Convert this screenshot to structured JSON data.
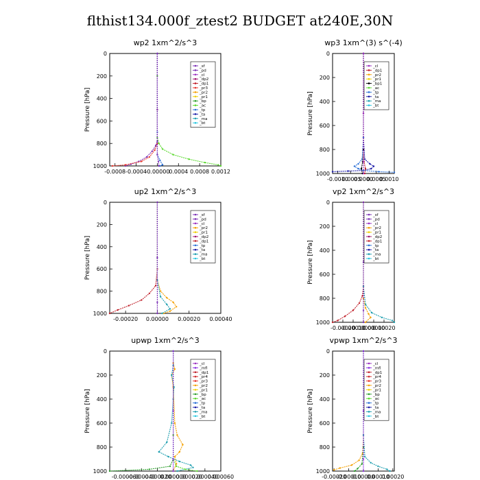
{
  "title": "flthist134.000f_ztest2  BUDGET at240E,30N",
  "colors": {
    "_sf": "#7a2fb5",
    "_pd": "#7a2fb5",
    "_cl": "#9b30c0",
    "_mfl": "#8a2be2",
    "_dp2": "#a0146e",
    "_dp1": "#c0202a",
    "_pr3": "#e8352a",
    "_pr4": "#d22e2e",
    "_pr2": "#f5a000",
    "_pr1": "#f0d000",
    "_bp": "#2e9e2e",
    "_ac": "#59d82d",
    "_tp": "#2a6fd6",
    "_ta": "#1a1aa8",
    "_ma": "#1f9fb0",
    "_bt": "#29c7e0"
  },
  "chart_data": [
    {
      "type": "line",
      "title": "wp2  1xm^2/s^3",
      "ylabel": "Pressure [hPa]",
      "xlim": [
        -0.0009,
        0.0012
      ],
      "ylim": [
        1000,
        0
      ],
      "xticks": [
        -0.0008,
        -0.0004,
        0.0,
        0.0004,
        0.0008,
        0.0012
      ],
      "xtick_labels": [
        "-0.0008",
        "-0.0004",
        "-0.00000",
        "0.0004",
        "0.0008",
        "0.0012"
      ],
      "yticks": [
        0,
        200,
        400,
        600,
        800,
        1000
      ],
      "legend": [
        "_sf",
        "_pd",
        "_cl",
        "_dp2",
        "_dp1",
        "_pr3",
        "_pr2",
        "_pr1",
        "_bp",
        "_ac",
        "_tp",
        "_ta",
        "_ma",
        "_bt"
      ],
      "series": [
        {
          "name": "_ac",
          "values": [
            [
              0,
              0
            ],
            [
              0,
              200
            ],
            [
              0,
              500
            ],
            [
              0,
              750
            ],
            [
              3e-05,
              800
            ],
            [
              0.0001,
              850
            ],
            [
              0.0003,
              900
            ],
            [
              0.0006,
              940
            ],
            [
              0.0009,
              970
            ],
            [
              0.00115,
              990
            ],
            [
              0.0012,
              1000
            ]
          ]
        },
        {
          "name": "_pd",
          "values": [
            [
              0,
              0
            ],
            [
              0,
              500
            ],
            [
              0,
              780
            ],
            [
              -3e-05,
              820
            ],
            [
              -0.0001,
              870
            ],
            [
              -0.0002,
              920
            ],
            [
              -0.00035,
              960
            ],
            [
              -0.0005,
              985
            ],
            [
              -0.0006,
              1000
            ]
          ]
        },
        {
          "name": "_pr3",
          "values": [
            [
              0,
              0
            ],
            [
              0,
              500
            ],
            [
              0,
              800
            ],
            [
              -5e-05,
              860
            ],
            [
              -0.00015,
              920
            ],
            [
              -0.0003,
              960
            ],
            [
              -0.0006,
              990
            ],
            [
              -0.00085,
              1000
            ]
          ]
        },
        {
          "name": "_tp",
          "values": [
            [
              0,
              0
            ],
            [
              0,
              700
            ],
            [
              0,
              900
            ],
            [
              5e-05,
              950
            ],
            [
              0.0001,
              990
            ],
            [
              5e-05,
              1000
            ]
          ]
        },
        {
          "name": "_sf",
          "values": [
            [
              0,
              0
            ],
            [
              0,
              500
            ],
            [
              0,
              900
            ],
            [
              2e-05,
              960
            ],
            [
              3e-05,
              1000
            ]
          ]
        }
      ]
    },
    {
      "type": "line",
      "title": "wp3  1xm^(3) s^(-4)",
      "ylabel": "Pressure [hPa]",
      "xlim": [
        -0.0012,
        0.0012
      ],
      "ylim": [
        1000,
        0
      ],
      "xticks": [
        -0.001,
        -0.0005,
        0.0,
        0.0005,
        0.001
      ],
      "xtick_labels": [
        "-0.0010",
        "-0.0005",
        "0.0000",
        "0.0005",
        "0.0010"
      ],
      "yticks": [
        0,
        200,
        400,
        600,
        800,
        1000
      ],
      "legend": [
        "_cl",
        "_dp1",
        "_pr2",
        "_pr1",
        "_bp1",
        "_ac",
        "_tp",
        "_ta",
        "_ma",
        "_bt"
      ],
      "series": [
        {
          "name": "_ta",
          "values": [
            [
              0,
              0
            ],
            [
              0,
              700
            ],
            [
              5e-05,
              880
            ],
            [
              0.00025,
              920
            ],
            [
              0.0004,
              940
            ],
            [
              0.0003,
              960
            ],
            [
              0,
              975
            ],
            [
              -0.0006,
              980
            ],
            [
              -0.0012,
              985
            ]
          ]
        },
        {
          "name": "_tp",
          "values": [
            [
              0,
              0
            ],
            [
              0,
              700
            ],
            [
              -5e-05,
              880
            ],
            [
              -0.0002,
              920
            ],
            [
              -0.00035,
              940
            ],
            [
              -0.0002,
              960
            ],
            [
              0,
              975
            ],
            [
              0.0006,
              985
            ],
            [
              0.0012,
              990
            ]
          ]
        },
        {
          "name": "_dp1",
          "values": [
            [
              0,
              0
            ],
            [
              0,
              500
            ],
            [
              0,
              800
            ],
            [
              2e-05,
              900
            ],
            [
              8e-05,
              960
            ],
            [
              5e-05,
              1000
            ]
          ]
        },
        {
          "name": "_bp1",
          "values": [
            [
              0,
              0
            ],
            [
              0,
              800
            ],
            [
              -3e-05,
              900
            ],
            [
              -8e-05,
              960
            ],
            [
              -4e-05,
              1000
            ]
          ]
        },
        {
          "name": "_cl",
          "values": [
            [
              0,
              0
            ],
            [
              0,
              500
            ],
            [
              0,
              900
            ],
            [
              0,
              1000
            ]
          ]
        }
      ]
    },
    {
      "type": "line",
      "title": "up2  1xm^2/s^3",
      "ylabel": "Pressure [hPa]",
      "xlim": [
        -0.0003,
        0.0004
      ],
      "ylim": [
        1000,
        0
      ],
      "xticks": [
        -0.0002,
        0.0,
        0.0002,
        0.0004
      ],
      "xtick_labels": [
        "-0.00020",
        "0.00000",
        "0.00020",
        "0.00040"
      ],
      "yticks": [
        0,
        200,
        400,
        600,
        800,
        1000
      ],
      "legend": [
        "_sf",
        "_pd",
        "_cl",
        "_pr2",
        "_pr1",
        "_dp2",
        "_dp1",
        "_tp",
        "_ta",
        "_ma",
        "_bt"
      ],
      "series": [
        {
          "name": "_dp1",
          "values": [
            [
              0,
              0
            ],
            [
              0,
              600
            ],
            [
              -1e-05,
              750
            ],
            [
              -5e-05,
              820
            ],
            [
              -0.0001,
              880
            ],
            [
              -0.00018,
              930
            ],
            [
              -0.00025,
              970
            ],
            [
              -0.0003,
              1000
            ]
          ]
        },
        {
          "name": "_pr2",
          "values": [
            [
              0,
              0
            ],
            [
              0,
              700
            ],
            [
              2e-05,
              800
            ],
            [
              6e-05,
              860
            ],
            [
              0.0001,
              900
            ],
            [
              0.00012,
              940
            ],
            [
              8e-05,
              980
            ],
            [
              4e-05,
              1000
            ]
          ]
        },
        {
          "name": "_ma",
          "values": [
            [
              0,
              0
            ],
            [
              0,
              700
            ],
            [
              2e-05,
              850
            ],
            [
              6e-05,
              920
            ],
            [
              8e-05,
              960
            ],
            [
              3e-05,
              1000
            ]
          ]
        },
        {
          "name": "_pd",
          "values": [
            [
              0,
              0
            ],
            [
              0,
              500
            ],
            [
              0,
              900
            ],
            [
              0,
              1000
            ]
          ]
        }
      ]
    },
    {
      "type": "line",
      "title": "vp2  1xm^2/s^3",
      "ylabel": "Pressure [hPa]",
      "xlim": [
        -0.0003,
        0.0003
      ],
      "ylim": [
        1000,
        0
      ],
      "xticks": [
        -0.0002,
        -0.0001,
        0.0,
        0.0001,
        0.0002
      ],
      "xtick_labels": [
        "-0.00020",
        "-0.00010",
        "0.00000",
        "0.00010",
        "0.00020"
      ],
      "yticks": [
        0,
        200,
        400,
        600,
        800,
        1000
      ],
      "legend": [
        "_sf",
        "_pd",
        "_cl",
        "_pr2",
        "_pr1",
        "_dp2",
        "_dp1",
        "_tp",
        "_ta",
        "_ma",
        "_bt"
      ],
      "series": [
        {
          "name": "_dp1",
          "values": [
            [
              0,
              0
            ],
            [
              0,
              700
            ],
            [
              -1e-05,
              780
            ],
            [
              -4e-05,
              840
            ],
            [
              -0.0001,
              900
            ],
            [
              -0.00018,
              950
            ],
            [
              -0.00025,
              985
            ],
            [
              -0.0003,
              1000
            ]
          ]
        },
        {
          "name": "_ma",
          "values": [
            [
              0,
              0
            ],
            [
              0,
              700
            ],
            [
              2e-05,
              850
            ],
            [
              8e-05,
              920
            ],
            [
              0.00018,
              960
            ],
            [
              0.00028,
              985
            ],
            [
              0.0003,
              1000
            ]
          ]
        },
        {
          "name": "_pr2",
          "values": [
            [
              0,
              0
            ],
            [
              0,
              800
            ],
            [
              2e-05,
              880
            ],
            [
              5e-05,
              930
            ],
            [
              7e-05,
              960
            ],
            [
              2e-05,
              1000
            ]
          ]
        },
        {
          "name": "_pd",
          "values": [
            [
              0,
              0
            ],
            [
              0,
              500
            ],
            [
              0,
              900
            ],
            [
              0,
              1000
            ]
          ]
        }
      ]
    },
    {
      "type": "line",
      "title": "upwp  1xm^2/s^3",
      "ylabel": "Pressure [hPa]",
      "xlim": [
        -8e-05,
        6e-05
      ],
      "ylim": [
        1000,
        0
      ],
      "xticks": [
        -6e-05,
        -4e-05,
        -2e-05,
        0.0,
        2e-05,
        4e-05,
        6e-05
      ],
      "xtick_labels": [
        "-0.000060",
        "-0.000040",
        "-0.000020",
        "0.000000",
        "0.000020",
        "0.000040",
        "0.000060"
      ],
      "yticks": [
        0,
        200,
        400,
        600,
        800,
        1000
      ],
      "legend": [
        "_cl",
        "_mfl",
        "_dp1",
        "_pr4",
        "_pr3",
        "_pr2",
        "_pr1",
        "_bp",
        "_ac",
        "_tp",
        "_ta",
        "_ma",
        "_bt"
      ],
      "series": [
        {
          "name": "_pr2",
          "values": [
            [
              0,
              0
            ],
            [
              0,
              100
            ],
            [
              2e-06,
              150
            ],
            [
              -2e-06,
              200
            ],
            [
              0,
              300
            ],
            [
              2e-06,
              600
            ],
            [
              5e-06,
              700
            ],
            [
              1.2e-05,
              780
            ],
            [
              8e-06,
              840
            ],
            [
              2e-06,
              880
            ],
            [
              4e-06,
              940
            ],
            [
              0,
              1000
            ]
          ]
        },
        {
          "name": "_ma",
          "values": [
            [
              0,
              0
            ],
            [
              0,
              120
            ],
            [
              -2e-06,
              200
            ],
            [
              1e-06,
              300
            ],
            [
              0,
              400
            ],
            [
              -2e-06,
              600
            ],
            [
              -8e-06,
              760
            ],
            [
              -1.8e-05,
              840
            ],
            [
              -6e-06,
              880
            ],
            [
              8e-06,
              920
            ],
            [
              2.2e-05,
              950
            ],
            [
              2.5e-05,
              970
            ],
            [
              5e-06,
              1000
            ]
          ]
        },
        {
          "name": "_bp",
          "values": [
            [
              0,
              0
            ],
            [
              0,
              700
            ],
            [
              0,
              900
            ],
            [
              -4e-06,
              960
            ],
            [
              -3e-05,
              985
            ],
            [
              -8e-05,
              1000
            ]
          ]
        },
        {
          "name": "_ac",
          "values": [
            [
              0,
              0
            ],
            [
              0,
              700
            ],
            [
              0,
              900
            ],
            [
              4e-06,
              960
            ],
            [
              1.5e-05,
              985
            ],
            [
              3e-05,
              1000
            ]
          ]
        },
        {
          "name": "_mfl",
          "values": [
            [
              0,
              0
            ],
            [
              0,
              500
            ],
            [
              0,
              900
            ],
            [
              0,
              1000
            ]
          ]
        }
      ]
    },
    {
      "type": "line",
      "title": "vpwp  1xm^2/s^3",
      "ylabel": "Pressure [hPa]",
      "xlim": [
        -0.00021,
        0.00021
      ],
      "ylim": [
        1000,
        0
      ],
      "xticks": [
        -0.0002,
        -0.0001,
        0.0,
        0.0001,
        0.0002
      ],
      "xtick_labels": [
        "-0.00020",
        "-0.00010",
        "0.00000",
        "0.00010",
        "0.00020"
      ],
      "yticks": [
        0,
        200,
        400,
        600,
        800,
        1000
      ],
      "legend": [
        "_cl",
        "_mfl",
        "_dp1",
        "_pr4",
        "_pr3",
        "_pr2",
        "_pr1",
        "_bp",
        "_ac",
        "_tp",
        "_ta",
        "_ma",
        "_bt"
      ],
      "series": [
        {
          "name": "_pr2",
          "values": [
            [
              0,
              0
            ],
            [
              0,
              700
            ],
            [
              -5e-06,
              850
            ],
            [
              -3e-05,
              910
            ],
            [
              -8e-05,
              950
            ],
            [
              -0.00016,
              975
            ],
            [
              -0.0002,
              990
            ]
          ]
        },
        {
          "name": "_ma",
          "values": [
            [
              0,
              0
            ],
            [
              0,
              700
            ],
            [
              1e-05,
              880
            ],
            [
              5e-05,
              930
            ],
            [
              0.0001,
              960
            ],
            [
              0.00016,
              985
            ],
            [
              0.00018,
              1000
            ]
          ]
        },
        {
          "name": "_bp",
          "values": [
            [
              0,
              0
            ],
            [
              0,
              800
            ],
            [
              -1e-05,
              940
            ],
            [
              -4e-05,
              980
            ],
            [
              -6e-05,
              1000
            ]
          ]
        },
        {
          "name": "_mfl",
          "values": [
            [
              0,
              0
            ],
            [
              0,
              500
            ],
            [
              0,
              900
            ],
            [
              0,
              1000
            ]
          ]
        }
      ]
    }
  ]
}
